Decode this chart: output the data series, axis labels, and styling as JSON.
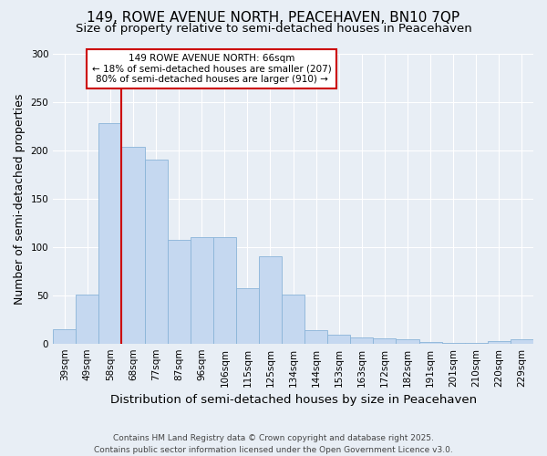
{
  "title": "149, ROWE AVENUE NORTH, PEACEHAVEN, BN10 7QP",
  "subtitle": "Size of property relative to semi-detached houses in Peacehaven",
  "xlabel": "Distribution of semi-detached houses by size in Peacehaven",
  "ylabel": "Number of semi-detached properties",
  "categories": [
    "39sqm",
    "49sqm",
    "58sqm",
    "68sqm",
    "77sqm",
    "87sqm",
    "96sqm",
    "106sqm",
    "115sqm",
    "125sqm",
    "134sqm",
    "144sqm",
    "153sqm",
    "163sqm",
    "172sqm",
    "182sqm",
    "191sqm",
    "201sqm",
    "210sqm",
    "220sqm",
    "229sqm"
  ],
  "values": [
    15,
    51,
    228,
    204,
    190,
    107,
    110,
    110,
    57,
    90,
    51,
    14,
    9,
    6,
    5,
    4,
    2,
    1,
    1,
    3,
    4
  ],
  "bar_color": "#c5d8f0",
  "bar_edge_color": "#8ab4d8",
  "marker_label": "149 ROWE AVENUE NORTH: 66sqm",
  "annotation_line1": "← 18% of semi-detached houses are smaller (207)",
  "annotation_line2": "80% of semi-detached houses are larger (910) →",
  "vline_color": "#cc0000",
  "annotation_box_edge_color": "#cc0000",
  "vline_x": 2.5,
  "ylim": [
    0,
    300
  ],
  "yticks": [
    0,
    50,
    100,
    150,
    200,
    250,
    300
  ],
  "background_color": "#e8eef5",
  "plot_bg_color": "#e8eef5",
  "footer": "Contains HM Land Registry data © Crown copyright and database right 2025.\nContains public sector information licensed under the Open Government Licence v3.0.",
  "title_fontsize": 11,
  "subtitle_fontsize": 9.5,
  "axis_label_fontsize": 9,
  "tick_fontsize": 7.5,
  "footer_fontsize": 6.5
}
